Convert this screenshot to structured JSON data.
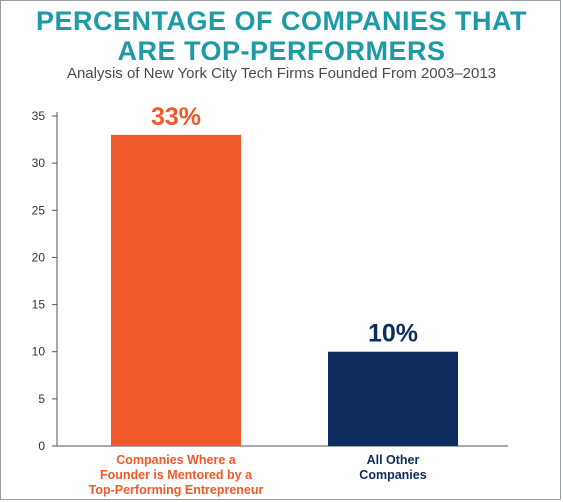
{
  "title_lines": [
    "PERCENTAGE OF COMPANIES THAT",
    "ARE TOP-PERFORMERS"
  ],
  "subtitle": "Analysis of New York City Tech Firms Founded From 2003–2013",
  "colors": {
    "title": "#1e9aa6",
    "bar_mentored": "#f05a2b",
    "bar_other": "#0d2d5e",
    "axis": "#555555"
  },
  "chart_data": {
    "type": "bar",
    "title": "PERCENTAGE OF COMPANIES THAT ARE TOP-PERFORMERS",
    "subtitle": "Analysis of New York City Tech Firms Founded From 2003–2013",
    "categories": [
      [
        "Companies Where a",
        "Founder is Mentored by a",
        "Top-Performing Entrepreneur"
      ],
      [
        "All Other",
        "Companies"
      ]
    ],
    "values": [
      33,
      10
    ],
    "data_labels": [
      "33%",
      "10%"
    ],
    "bar_colors": [
      "#f05a2b",
      "#0d2d5e"
    ],
    "xlabel": "",
    "ylabel": "",
    "ylim": [
      0,
      35
    ],
    "yticks": [
      0,
      5,
      10,
      15,
      20,
      25,
      30,
      35
    ],
    "grid": false,
    "legend": "none"
  }
}
